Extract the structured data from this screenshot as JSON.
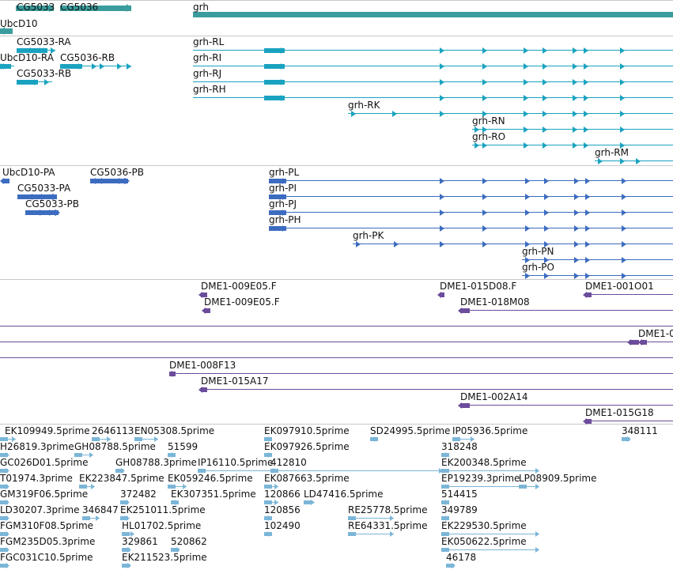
{
  "colors": {
    "gene": "#3a9c9c",
    "transcript": "#1aa3c0",
    "protein": "#3c6cc0",
    "clone": "#6c4c9c",
    "est": "#7bb6d8",
    "separator": "#c8c8c8"
  },
  "tracks": {
    "genes": {
      "features": [
        {
          "label": "CG5033",
          "strand": "+",
          "color": "gene"
        },
        {
          "label": "CG5036",
          "strand": "+",
          "color": "gene"
        },
        {
          "label": "grh",
          "strand": "+",
          "color": "gene"
        },
        {
          "label": "UbcD10",
          "strand": "-",
          "color": "gene"
        }
      ]
    },
    "transcripts": {
      "features": [
        {
          "label": "CG5033-RA",
          "strand": "+",
          "color": "transcript"
        },
        {
          "label": "UbcD10-RA",
          "strand": "-",
          "color": "transcript"
        },
        {
          "label": "CG5036-RB",
          "strand": "+",
          "color": "transcript"
        },
        {
          "label": "CG5033-RB",
          "strand": "+",
          "color": "transcript"
        },
        {
          "label": "grh-RL",
          "strand": "+",
          "color": "transcript"
        },
        {
          "label": "grh-RI",
          "strand": "+",
          "color": "transcript"
        },
        {
          "label": "grh-RJ",
          "strand": "+",
          "color": "transcript"
        },
        {
          "label": "grh-RH",
          "strand": "+",
          "color": "transcript"
        },
        {
          "label": "grh-RK",
          "strand": "+",
          "color": "transcript"
        },
        {
          "label": "grh-RN",
          "strand": "+",
          "color": "transcript"
        },
        {
          "label": "grh-RO",
          "strand": "+",
          "color": "transcript"
        },
        {
          "label": "grh-RM",
          "strand": "+",
          "color": "transcript"
        }
      ]
    },
    "proteins": {
      "features": [
        {
          "label": "UbcD10-PA",
          "strand": "-",
          "color": "protein"
        },
        {
          "label": "CG5036-PB",
          "strand": "+",
          "color": "protein"
        },
        {
          "label": "CG5033-PA",
          "strand": "+",
          "color": "protein"
        },
        {
          "label": "CG5033-PB",
          "strand": "+",
          "color": "protein"
        },
        {
          "label": "grh-PL",
          "strand": "+",
          "color": "protein"
        },
        {
          "label": "grh-PI",
          "strand": "+",
          "color": "protein"
        },
        {
          "label": "grh-PJ",
          "strand": "+",
          "color": "protein"
        },
        {
          "label": "grh-PH",
          "strand": "+",
          "color": "protein"
        },
        {
          "label": "grh-PK",
          "strand": "+",
          "color": "protein"
        },
        {
          "label": "grh-PN",
          "strand": "+",
          "color": "protein"
        },
        {
          "label": "grh-PO",
          "strand": "+",
          "color": "protein"
        }
      ]
    },
    "clones": {
      "features": [
        {
          "label": "DME1-009E05.F",
          "strand": "-",
          "color": "clone"
        },
        {
          "label": "DME1-009E05.F",
          "strand": "-",
          "color": "clone"
        },
        {
          "label": "DME1-015D08.F",
          "strand": "-",
          "color": "clone"
        },
        {
          "label": "DME1-018M08",
          "strand": "-",
          "color": "clone"
        },
        {
          "label": "DME1-001O01",
          "strand": "-",
          "color": "clone"
        },
        {
          "label": "DME1-0",
          "strand": "-",
          "color": "clone"
        },
        {
          "label": "DME1-008F13",
          "strand": "+",
          "color": "clone"
        },
        {
          "label": "DME1-015A17",
          "strand": "-",
          "color": "clone"
        },
        {
          "label": "DME1-002A14",
          "strand": "-",
          "color": "clone"
        },
        {
          "label": "DME1-015G18",
          "strand": "-",
          "color": "clone"
        }
      ]
    },
    "ests": {
      "features": [
        {
          "label": "EK109949.5prime",
          "color": "est"
        },
        {
          "label": "2646113",
          "color": "est"
        },
        {
          "label": "EN05308.5prime",
          "color": "est"
        },
        {
          "label": "EK097910.5prime",
          "color": "est"
        },
        {
          "label": "SD24995.5prime",
          "color": "est"
        },
        {
          "label": "IP05936.5prime",
          "color": "est"
        },
        {
          "label": "348111",
          "color": "est"
        },
        {
          "label": "H26819.3prime",
          "color": "est"
        },
        {
          "label": "GH08788.5prime",
          "color": "est"
        },
        {
          "label": "51599",
          "color": "est"
        },
        {
          "label": "EK097926.5prime",
          "color": "est"
        },
        {
          "label": "318248",
          "color": "est"
        },
        {
          "label": "GC026D01.5prime",
          "color": "est"
        },
        {
          "label": "GH08788.3prime",
          "color": "est"
        },
        {
          "label": "IP16110.5prime",
          "color": "est"
        },
        {
          "label": "412810",
          "color": "est"
        },
        {
          "label": "EK200348.5prime",
          "color": "est"
        },
        {
          "label": "T01974.3prime",
          "color": "est"
        },
        {
          "label": "EK223847.5prime",
          "color": "est"
        },
        {
          "label": "EK059246.5prime",
          "color": "est"
        },
        {
          "label": "EK087663.5prime",
          "color": "est"
        },
        {
          "label": "EP19239.3prime",
          "color": "est"
        },
        {
          "label": "LP08909.5prime",
          "color": "est"
        },
        {
          "label": "GM319F06.5prime",
          "color": "est"
        },
        {
          "label": "372482",
          "color": "est"
        },
        {
          "label": "EK307351.5prime",
          "color": "est"
        },
        {
          "label": "120866",
          "color": "est"
        },
        {
          "label": "LD47416.5prime",
          "color": "est"
        },
        {
          "label": "514415",
          "color": "est"
        },
        {
          "label": "LD30207.3prime",
          "color": "est"
        },
        {
          "label": "346847",
          "color": "est"
        },
        {
          "label": "EK251011.5prime",
          "color": "est"
        },
        {
          "label": "120856",
          "color": "est"
        },
        {
          "label": "RE25778.5prime",
          "color": "est"
        },
        {
          "label": "349789",
          "color": "est"
        },
        {
          "label": "FGM310F08.5prime",
          "color": "est"
        },
        {
          "label": "HL01702.5prime",
          "color": "est"
        },
        {
          "label": "102490",
          "color": "est"
        },
        {
          "label": "RE64331.5prime",
          "color": "est"
        },
        {
          "label": "EK229530.5prime",
          "color": "est"
        },
        {
          "label": "FGM235D05.3prime",
          "color": "est"
        },
        {
          "label": "329861",
          "color": "est"
        },
        {
          "label": "520862",
          "color": "est"
        },
        {
          "label": "EK050622.5prime",
          "color": "est"
        },
        {
          "label": "FGC031C10.5prime",
          "color": "est"
        },
        {
          "label": "EK211523.5prime",
          "color": "est"
        },
        {
          "label": "46178",
          "color": "est"
        }
      ]
    }
  }
}
